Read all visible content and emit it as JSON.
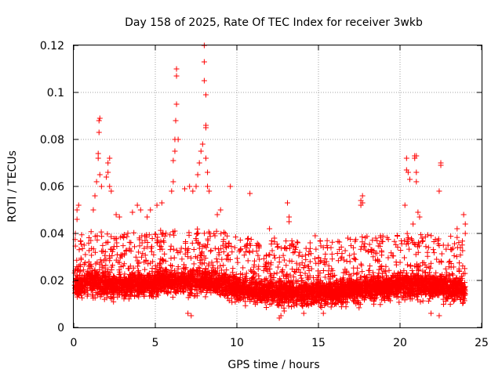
{
  "chart_data": {
    "type": "scatter",
    "title": "Day 158 of 2025, Rate Of TEC Index for receiver 3wkb",
    "xlabel": "GPS time / hours",
    "ylabel": "ROTI / TECUs",
    "xlim": [
      0,
      25
    ],
    "ylim": [
      0,
      0.12
    ],
    "x_ticks": [
      0,
      5,
      10,
      15,
      20,
      25
    ],
    "x_tick_labels": [
      "0",
      "5",
      "10",
      "15",
      "20",
      "25"
    ],
    "y_ticks": [
      0,
      0.02,
      0.04,
      0.06,
      0.08,
      0.1,
      0.12
    ],
    "y_tick_labels": [
      "0",
      "0.02",
      "0.04",
      "0.06",
      "0.08",
      "0.1",
      "0.12"
    ],
    "grid": true,
    "marker": "+",
    "color": "#ff0000",
    "series": [
      {
        "name": "ROTI",
        "baseline_profile": {
          "x": [
            0,
            1,
            2,
            3,
            4,
            5,
            6,
            7,
            8,
            9,
            10,
            11,
            12,
            13,
            14,
            15,
            16,
            17,
            18,
            19,
            20,
            21,
            22,
            23,
            24
          ],
          "y": [
            0.017,
            0.02,
            0.018,
            0.018,
            0.019,
            0.019,
            0.02,
            0.02,
            0.02,
            0.019,
            0.017,
            0.016,
            0.015,
            0.015,
            0.015,
            0.015,
            0.015,
            0.016,
            0.017,
            0.017,
            0.018,
            0.018,
            0.018,
            0.017,
            0.016
          ]
        },
        "points": [
          [
            0.2,
            0.05
          ],
          [
            0.3,
            0.052
          ],
          [
            0.1,
            0.04
          ],
          [
            0.2,
            0.046
          ],
          [
            1.2,
            0.05
          ],
          [
            1.3,
            0.056
          ],
          [
            1.4,
            0.062
          ],
          [
            1.5,
            0.072
          ],
          [
            1.5,
            0.074
          ],
          [
            1.55,
            0.083
          ],
          [
            1.55,
            0.088
          ],
          [
            1.6,
            0.089
          ],
          [
            1.6,
            0.065
          ],
          [
            1.7,
            0.06
          ],
          [
            2.0,
            0.064
          ],
          [
            2.1,
            0.066
          ],
          [
            2.1,
            0.07
          ],
          [
            2.2,
            0.072
          ],
          [
            2.2,
            0.06
          ],
          [
            2.3,
            0.058
          ],
          [
            2.6,
            0.048
          ],
          [
            2.8,
            0.047
          ],
          [
            3.6,
            0.049
          ],
          [
            3.9,
            0.052
          ],
          [
            4.1,
            0.05
          ],
          [
            4.5,
            0.047
          ],
          [
            4.7,
            0.05
          ],
          [
            5.1,
            0.052
          ],
          [
            5.4,
            0.053
          ],
          [
            6.0,
            0.058
          ],
          [
            6.1,
            0.062
          ],
          [
            6.1,
            0.071
          ],
          [
            6.2,
            0.075
          ],
          [
            6.2,
            0.08
          ],
          [
            6.25,
            0.088
          ],
          [
            6.3,
            0.095
          ],
          [
            6.3,
            0.107
          ],
          [
            6.3,
            0.11
          ],
          [
            6.4,
            0.08
          ],
          [
            6.8,
            0.059
          ],
          [
            7.1,
            0.06
          ],
          [
            7.3,
            0.058
          ],
          [
            7.5,
            0.06
          ],
          [
            7.6,
            0.065
          ],
          [
            7.7,
            0.07
          ],
          [
            7.8,
            0.075
          ],
          [
            7.9,
            0.078
          ],
          [
            8.0,
            0.12
          ],
          [
            8.0,
            0.113
          ],
          [
            8.0,
            0.105
          ],
          [
            8.1,
            0.099
          ],
          [
            8.1,
            0.086
          ],
          [
            8.1,
            0.085
          ],
          [
            8.1,
            0.072
          ],
          [
            8.2,
            0.066
          ],
          [
            8.2,
            0.06
          ],
          [
            8.3,
            0.058
          ],
          [
            8.8,
            0.048
          ],
          [
            9.0,
            0.05
          ],
          [
            9.6,
            0.06
          ],
          [
            10.8,
            0.057
          ],
          [
            12.0,
            0.042
          ],
          [
            12.3,
            0.038
          ],
          [
            13.1,
            0.053
          ],
          [
            13.2,
            0.047
          ],
          [
            13.2,
            0.045
          ],
          [
            14.8,
            0.039
          ],
          [
            16.8,
            0.038
          ],
          [
            17.6,
            0.052
          ],
          [
            17.6,
            0.054
          ],
          [
            17.7,
            0.056
          ],
          [
            17.7,
            0.053
          ],
          [
            18.8,
            0.039
          ],
          [
            20.3,
            0.052
          ],
          [
            20.4,
            0.067
          ],
          [
            20.5,
            0.066
          ],
          [
            20.4,
            0.072
          ],
          [
            20.6,
            0.063
          ],
          [
            20.9,
            0.073
          ],
          [
            20.9,
            0.072
          ],
          [
            21.0,
            0.073
          ],
          [
            21.0,
            0.066
          ],
          [
            21.0,
            0.062
          ],
          [
            21.1,
            0.049
          ],
          [
            21.2,
            0.047
          ],
          [
            20.8,
            0.044
          ],
          [
            22.4,
            0.058
          ],
          [
            22.5,
            0.069
          ],
          [
            22.5,
            0.07
          ],
          [
            23.5,
            0.042
          ],
          [
            23.9,
            0.048
          ],
          [
            24.0,
            0.044
          ],
          [
            24.0,
            0.04
          ],
          [
            12.6,
            0.004
          ],
          [
            12.7,
            0.005
          ],
          [
            12.9,
            0.007
          ],
          [
            14.1,
            0.006
          ],
          [
            15.3,
            0.006
          ],
          [
            21.9,
            0.006
          ],
          [
            22.4,
            0.005
          ],
          [
            7.0,
            0.006
          ],
          [
            7.2,
            0.005
          ]
        ]
      }
    ]
  }
}
